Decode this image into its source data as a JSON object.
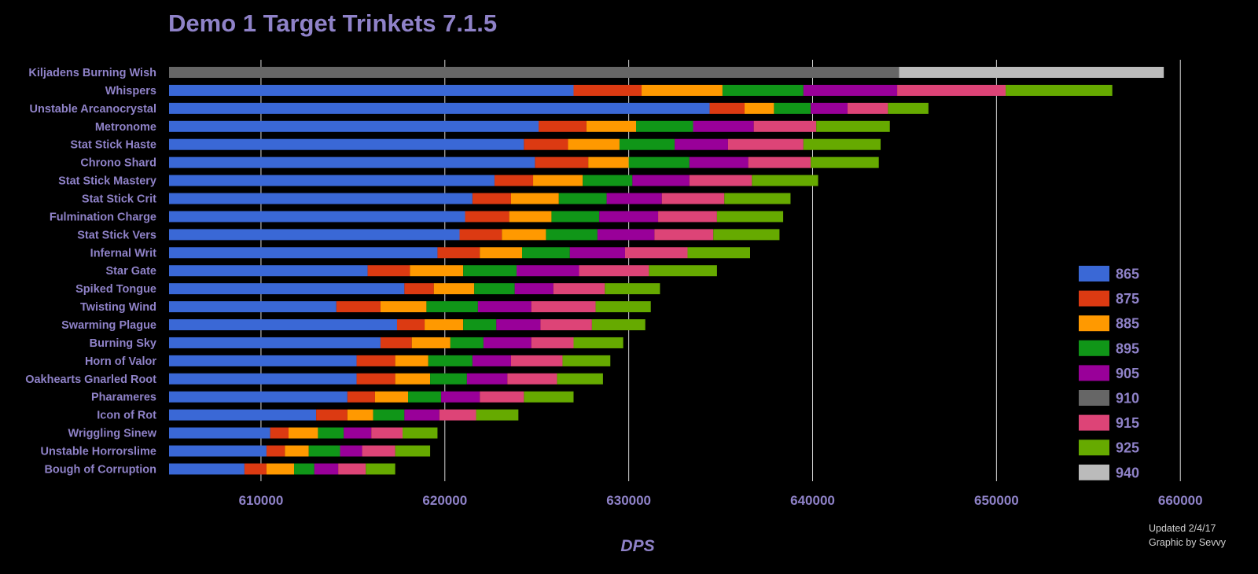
{
  "chart_data": {
    "type": "bar",
    "orientation": "horizontal",
    "stacked": true,
    "title": "Demo 1 Target Trinkets 7.1.5",
    "xlabel": "DPS",
    "ylabel": "",
    "xlim": [
      605000,
      662000
    ],
    "xticks": [
      610000,
      620000,
      630000,
      640000,
      650000,
      660000
    ],
    "grid": true,
    "legend_position": "right",
    "series_colors": {
      "865": "#3a68d6",
      "875": "#dc3a12",
      "885": "#ff9900",
      "895": "#109618",
      "905": "#990099",
      "910": "#666666",
      "915": "#dd4477",
      "925": "#66aa00",
      "940": "#bbbbbb"
    },
    "legend": [
      "865",
      "875",
      "885",
      "895",
      "905",
      "910",
      "915",
      "925",
      "940"
    ],
    "categories": [
      "Kiljadens Burning Wish",
      "Whispers",
      "Unstable Arcanocrystal",
      "Metronome",
      "Stat Stick Haste",
      "Chrono Shard",
      "Stat Stick Mastery",
      "Stat Stick Crit",
      "Fulmination Charge",
      "Stat Stick Vers",
      "Infernal Writ",
      "Star Gate",
      "Spiked Tongue",
      "Twisting Wind",
      "Swarming Plague",
      "Burning Sky",
      "Horn of Valor",
      "Oakhearts Gnarled Root",
      "Pharameres",
      "Icon of Rot",
      "Wriggling Sinew",
      "Unstable Horrorslime",
      "Bough of Corruption"
    ],
    "bars": [
      {
        "segments": [
          [
            "910",
            644700
          ],
          [
            "940",
            659100
          ]
        ]
      },
      {
        "segments": [
          [
            "865",
            627000
          ],
          [
            "875",
            630700
          ],
          [
            "885",
            635100
          ],
          [
            "895",
            639500
          ],
          [
            "905",
            644600
          ],
          [
            "915",
            650500
          ],
          [
            "925",
            656300
          ]
        ]
      },
      {
        "segments": [
          [
            "865",
            634400
          ],
          [
            "875",
            636300
          ],
          [
            "885",
            637900
          ],
          [
            "895",
            639900
          ],
          [
            "905",
            641900
          ],
          [
            "915",
            644100
          ],
          [
            "925",
            646300
          ]
        ]
      },
      {
        "segments": [
          [
            "865",
            625100
          ],
          [
            "875",
            627700
          ],
          [
            "885",
            630400
          ],
          [
            "895",
            633500
          ],
          [
            "905",
            636800
          ],
          [
            "915",
            640200
          ],
          [
            "925",
            644200
          ]
        ]
      },
      {
        "segments": [
          [
            "865",
            624300
          ],
          [
            "875",
            626700
          ],
          [
            "885",
            629500
          ],
          [
            "895",
            632500
          ],
          [
            "905",
            635400
          ],
          [
            "915",
            639500
          ],
          [
            "925",
            643700
          ]
        ]
      },
      {
        "segments": [
          [
            "865",
            624900
          ],
          [
            "875",
            627800
          ],
          [
            "885",
            630000
          ],
          [
            "895",
            633300
          ],
          [
            "905",
            636500
          ],
          [
            "915",
            639900
          ],
          [
            "925",
            643600
          ]
        ]
      },
      {
        "segments": [
          [
            "865",
            622700
          ],
          [
            "875",
            624800
          ],
          [
            "885",
            627500
          ],
          [
            "895",
            630200
          ],
          [
            "905",
            633300
          ],
          [
            "915",
            636700
          ],
          [
            "925",
            640300
          ]
        ]
      },
      {
        "segments": [
          [
            "865",
            621500
          ],
          [
            "875",
            623600
          ],
          [
            "885",
            626200
          ],
          [
            "895",
            628800
          ],
          [
            "905",
            631800
          ],
          [
            "915",
            635200
          ],
          [
            "925",
            638800
          ]
        ]
      },
      {
        "segments": [
          [
            "865",
            621100
          ],
          [
            "875",
            623500
          ],
          [
            "885",
            625800
          ],
          [
            "895",
            628400
          ],
          [
            "905",
            631600
          ],
          [
            "915",
            634800
          ],
          [
            "925",
            638400
          ]
        ]
      },
      {
        "segments": [
          [
            "865",
            620800
          ],
          [
            "875",
            623100
          ],
          [
            "885",
            625500
          ],
          [
            "895",
            628300
          ],
          [
            "905",
            631400
          ],
          [
            "915",
            634600
          ],
          [
            "925",
            638200
          ]
        ]
      },
      {
        "segments": [
          [
            "865",
            619600
          ],
          [
            "875",
            621900
          ],
          [
            "885",
            624200
          ],
          [
            "895",
            626800
          ],
          [
            "905",
            629800
          ],
          [
            "915",
            633200
          ],
          [
            "925",
            636600
          ]
        ]
      },
      {
        "segments": [
          [
            "865",
            615800
          ],
          [
            "875",
            618100
          ],
          [
            "885",
            621000
          ],
          [
            "895",
            623900
          ],
          [
            "905",
            627300
          ],
          [
            "915",
            631100
          ],
          [
            "925",
            634800
          ]
        ]
      },
      {
        "segments": [
          [
            "865",
            617800
          ],
          [
            "875",
            619400
          ],
          [
            "885",
            621600
          ],
          [
            "895",
            623800
          ],
          [
            "905",
            625900
          ],
          [
            "915",
            628700
          ],
          [
            "925",
            631700
          ]
        ]
      },
      {
        "segments": [
          [
            "865",
            614100
          ],
          [
            "875",
            616500
          ],
          [
            "885",
            619000
          ],
          [
            "895",
            621800
          ],
          [
            "905",
            624700
          ],
          [
            "915",
            628200
          ],
          [
            "925",
            631200
          ]
        ]
      },
      {
        "segments": [
          [
            "865",
            617400
          ],
          [
            "875",
            618900
          ],
          [
            "885",
            621000
          ],
          [
            "895",
            622800
          ],
          [
            "905",
            625200
          ],
          [
            "915",
            628000
          ],
          [
            "925",
            630900
          ]
        ]
      },
      {
        "segments": [
          [
            "865",
            616500
          ],
          [
            "875",
            618200
          ],
          [
            "885",
            620300
          ],
          [
            "895",
            622100
          ],
          [
            "905",
            624700
          ],
          [
            "915",
            627000
          ],
          [
            "925",
            629700
          ]
        ]
      },
      {
        "segments": [
          [
            "865",
            615200
          ],
          [
            "875",
            617300
          ],
          [
            "885",
            619100
          ],
          [
            "895",
            621500
          ],
          [
            "905",
            623600
          ],
          [
            "915",
            626400
          ],
          [
            "925",
            629000
          ]
        ]
      },
      {
        "segments": [
          [
            "865",
            615200
          ],
          [
            "875",
            617300
          ],
          [
            "885",
            619200
          ],
          [
            "895",
            621200
          ],
          [
            "905",
            623400
          ],
          [
            "915",
            626100
          ],
          [
            "925",
            628600
          ]
        ]
      },
      {
        "segments": [
          [
            "865",
            614700
          ],
          [
            "875",
            616200
          ],
          [
            "885",
            618000
          ],
          [
            "895",
            619800
          ],
          [
            "905",
            621900
          ],
          [
            "915",
            624300
          ],
          [
            "925",
            627000
          ]
        ]
      },
      {
        "segments": [
          [
            "865",
            613000
          ],
          [
            "875",
            614700
          ],
          [
            "885",
            616100
          ],
          [
            "895",
            617800
          ],
          [
            "905",
            619700
          ],
          [
            "915",
            621700
          ],
          [
            "925",
            624000
          ]
        ]
      },
      {
        "segments": [
          [
            "865",
            610500
          ],
          [
            "875",
            611500
          ],
          [
            "885",
            613100
          ],
          [
            "895",
            614500
          ],
          [
            "905",
            616000
          ],
          [
            "915",
            617700
          ],
          [
            "925",
            619600
          ]
        ]
      },
      {
        "segments": [
          [
            "865",
            610300
          ],
          [
            "875",
            611300
          ],
          [
            "885",
            612600
          ],
          [
            "895",
            614300
          ],
          [
            "905",
            615500
          ],
          [
            "915",
            617300
          ],
          [
            "925",
            619200
          ]
        ]
      },
      {
        "segments": [
          [
            "865",
            609100
          ],
          [
            "875",
            610300
          ],
          [
            "885",
            611800
          ],
          [
            "895",
            612900
          ],
          [
            "905",
            614200
          ],
          [
            "915",
            615700
          ],
          [
            "925",
            617300
          ]
        ]
      }
    ]
  },
  "footer": {
    "updated": "Updated 2/4/17",
    "credit": "Graphic by Sevvy"
  }
}
